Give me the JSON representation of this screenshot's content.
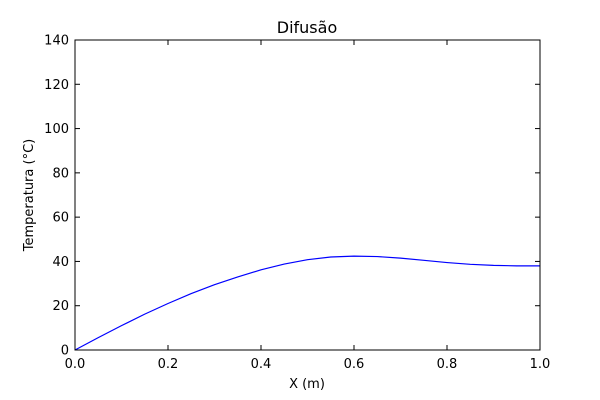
{
  "chart_data": {
    "type": "line",
    "title": "Difusão",
    "xlabel": "X (m)",
    "ylabel": "Temperatura (°C)",
    "xlim": [
      0,
      1
    ],
    "ylim": [
      0,
      140
    ],
    "xticks": [
      0.0,
      0.2,
      0.4,
      0.6,
      0.8,
      1.0
    ],
    "xtick_labels": [
      "0.0",
      "0.2",
      "0.4",
      "0.6",
      "0.8",
      "1.0"
    ],
    "yticks": [
      0,
      20,
      40,
      60,
      80,
      100,
      120,
      140
    ],
    "ytick_labels": [
      "0",
      "20",
      "40",
      "60",
      "80",
      "100",
      "120",
      "140"
    ],
    "grid": false,
    "series": [
      {
        "color": "#0000ff",
        "x": [
          0.0,
          0.05,
          0.1,
          0.15,
          0.2,
          0.25,
          0.3,
          0.35,
          0.4,
          0.45,
          0.5,
          0.55,
          0.6,
          0.65,
          0.7,
          0.75,
          0.8,
          0.85,
          0.9,
          0.95,
          1.0
        ],
        "y": [
          0.0,
          5.6,
          11.0,
          16.2,
          21.0,
          25.5,
          29.5,
          33.0,
          36.2,
          38.8,
          40.8,
          42.0,
          42.4,
          42.2,
          41.5,
          40.5,
          39.5,
          38.7,
          38.2,
          38.0,
          38.0
        ]
      }
    ]
  }
}
